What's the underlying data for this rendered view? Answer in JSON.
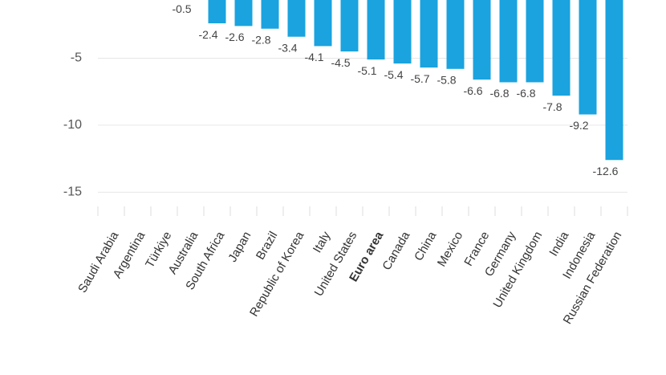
{
  "chart_data": {
    "type": "bar",
    "categories": [
      "Saudi Arabia",
      "Argentina",
      "Türkiye",
      "Australia",
      "South Africa",
      "Japan",
      "Brazil",
      "Republic of Korea",
      "Italy",
      "United States",
      "Euro area",
      "Canada",
      "China",
      "Mexico",
      "France",
      "Germany",
      "United Kingdom",
      "India",
      "Indonesia",
      "Russian Federation"
    ],
    "values": [
      null,
      null,
      null,
      -0.5,
      -2.4,
      -2.6,
      -2.8,
      -3.4,
      -4.1,
      -4.5,
      -5.1,
      -5.4,
      -5.7,
      -5.8,
      -6.6,
      -6.8,
      -6.8,
      -7.8,
      -9.2,
      -12.6
    ],
    "color": "#1aa3df",
    "ylim": [
      -16,
      0
    ],
    "yticks": [
      -5,
      -10,
      -15
    ],
    "grid": true,
    "bold_categories": [
      10
    ]
  }
}
